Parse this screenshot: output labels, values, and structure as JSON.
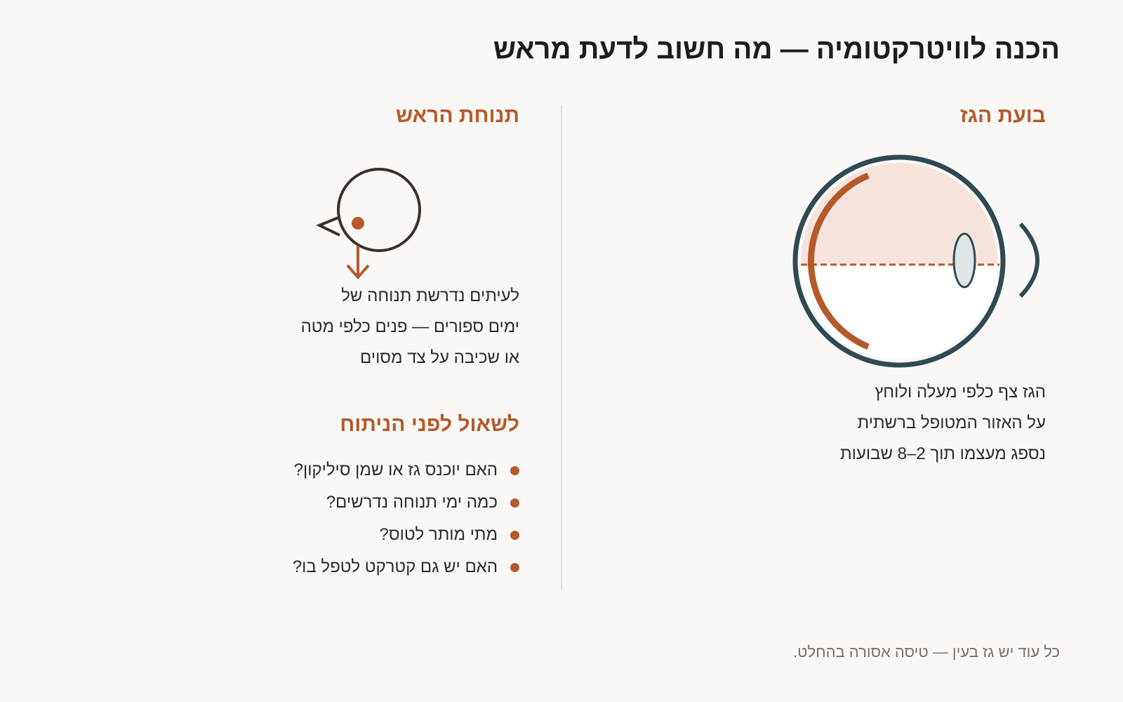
{
  "title": "הכנה לוויטרקטומיה — מה חשוב לדעת מראש",
  "gas_bubble": {
    "heading": "בועת הגז",
    "caption_lines": [
      "הגז צף כלפי מעלה ולוחץ",
      "על האזור המטופל ברשתית",
      "נספג מעצמו תוך 2–8 שבועות"
    ]
  },
  "head_position": {
    "heading": "תנוחת הראש",
    "caption_lines": [
      "לעיתים נדרשת תנוחה של",
      "ימים ספורים — פנים כלפי מטה",
      "או שכיבה על צד מסוים"
    ]
  },
  "questions": {
    "heading": "לשאול לפני הניתוח",
    "items": [
      "האם יוכנס גז או שמן סיליקון?",
      "כמה ימי תנוחה נדרשים?",
      "מתי מותר לטוס?",
      "האם יש גם קטרקט לטפל בו?"
    ]
  },
  "footer_note": "כל עוד יש גז בעין — טיסה אסורה בהחלט.",
  "icons": {
    "eye_diagram": "eye-cross-section-icon",
    "head_down": "face-down-head-icon"
  },
  "colors": {
    "accent": "#b65a2a",
    "eye_outline": "#2e4a52",
    "gas_fill": "#f6e4dc",
    "text": "#2d2a28",
    "muted": "#7a706a"
  }
}
